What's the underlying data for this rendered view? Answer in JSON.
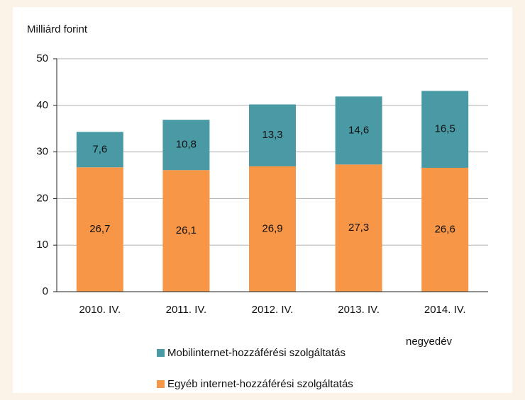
{
  "chart_data": {
    "type": "stacked_bar",
    "y_axis_label": "Milliárd forint",
    "x_axis_label": "negyedév",
    "categories": [
      "2010. IV.",
      "2011. IV.",
      "2012. IV.",
      "2013. IV.",
      "2014. IV."
    ],
    "series": [
      {
        "name": "Mobilinternet-hozzáférési szolgáltatás",
        "color": "#4a9aa5",
        "values": [
          7.6,
          10.8,
          13.3,
          14.6,
          16.5
        ],
        "value_labels": [
          "7,6",
          "10,8",
          "13,3",
          "14,6",
          "16,5"
        ]
      },
      {
        "name": "Egyéb internet-hozzáférési szolgáltatás",
        "color": "#f79646",
        "values": [
          26.7,
          26.1,
          26.9,
          27.3,
          26.6
        ],
        "value_labels": [
          "26,7",
          "26,1",
          "26,9",
          "27,3",
          "26,6"
        ]
      }
    ],
    "ylim": [
      0,
      50
    ],
    "yticks": [
      0,
      10,
      20,
      30,
      40,
      50
    ],
    "grid": true
  }
}
